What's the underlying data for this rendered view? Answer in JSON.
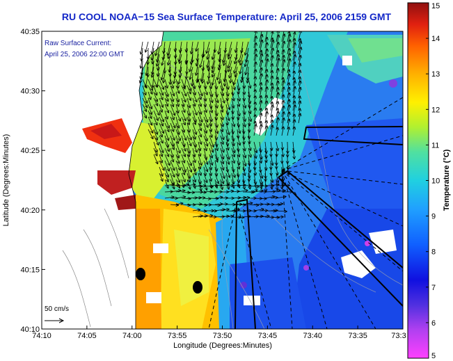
{
  "title": "RU COOL  NOAA−15  Sea Surface Temperature:  April 25, 2006 2159 GMT",
  "annotation_line1": "Raw Surface Current:",
  "annotation_line2": "April 25, 2006 22:00 GMT",
  "scale_label": "50 cm/s",
  "xlabel": "Longitude (Degrees:Minutes)",
  "ylabel": "Latitude (Degrees:Minutes)",
  "colorbar_label": "Temperature (°C)",
  "x_ticks": [
    "74:10",
    "74:05",
    "74:00",
    "73:55",
    "73:50",
    "73:45",
    "73:40",
    "73:35",
    "73:3"
  ],
  "y_ticks": [
    "40:35",
    "40:30",
    "40:25",
    "40:20",
    "40:15",
    "40:10"
  ],
  "cbar_ticks": [
    "15",
    "14",
    "13",
    "12",
    "11",
    "10",
    "9",
    "8",
    "7",
    "6",
    "5"
  ],
  "colors": {
    "title": "#1428c8",
    "annotation": "#1a22a0",
    "land": "#ffffff",
    "vectors": "#000000"
  },
  "chart_data": {
    "type": "heatmap",
    "xlim": [
      "74:10",
      "73:30"
    ],
    "ylim": [
      "40:10",
      "40:35"
    ],
    "colorbar_range": [
      5,
      15
    ],
    "variable": "Sea Surface Temperature"
  }
}
